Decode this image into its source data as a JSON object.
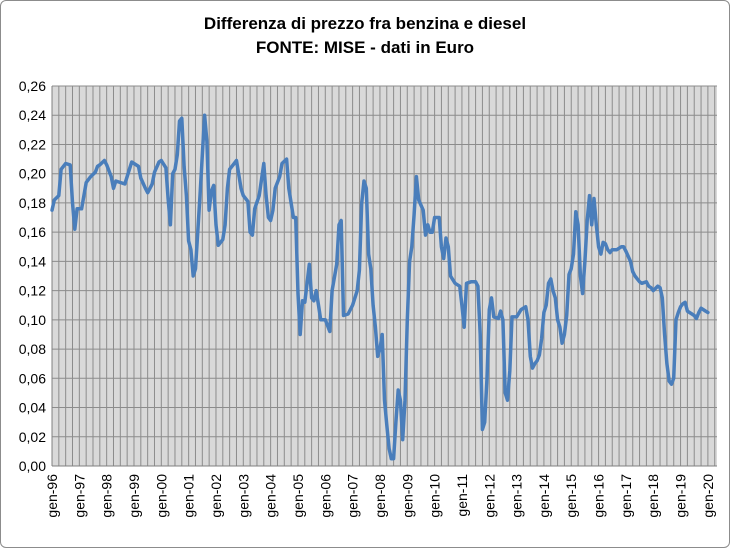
{
  "chart_data": {
    "type": "line",
    "title": "Differenza di prezzo fra benzina e diesel",
    "subtitle": "FONTE: MISE - dati in Euro",
    "ylim": [
      0,
      0.26
    ],
    "y_ticks": [
      "0,00",
      "0,02",
      "0,04",
      "0,06",
      "0,08",
      "0,10",
      "0,12",
      "0,14",
      "0,16",
      "0,18",
      "0,20",
      "0,22",
      "0,24",
      "0,26"
    ],
    "x_ticks": [
      "gen-96",
      "gen-97",
      "gen-98",
      "gen-99",
      "gen-00",
      "gen-01",
      "gen-02",
      "gen-03",
      "gen-04",
      "gen-05",
      "gen-06",
      "gen-07",
      "gen-08",
      "gen-09",
      "gen-10",
      "gen-11",
      "gen-12",
      "gen-13",
      "gen-14",
      "gen-15",
      "gen-16",
      "gen-17",
      "gen-18",
      "gen-19",
      "gen-20"
    ],
    "grid": true,
    "series_color": "#4a7ebb",
    "points": [
      [
        "gen-96",
        0.175
      ],
      [
        "feb-96",
        0.182
      ],
      [
        "apr-96",
        0.185
      ],
      [
        "mag-96",
        0.203
      ],
      [
        "lug-96",
        0.207
      ],
      [
        "set-96",
        0.206
      ],
      [
        "ott-96",
        0.18
      ],
      [
        "nov-96",
        0.162
      ],
      [
        "dic-96",
        0.176
      ],
      [
        "feb-97",
        0.176
      ],
      [
        "apr-97",
        0.194
      ],
      [
        "giu-97",
        0.198
      ],
      [
        "ago-97",
        0.201
      ],
      [
        "set-97",
        0.205
      ],
      [
        "ott-97",
        0.206
      ],
      [
        "dic-97",
        0.209
      ],
      [
        "gen-98",
        0.206
      ],
      [
        "mar-98",
        0.198
      ],
      [
        "apr-98",
        0.19
      ],
      [
        "mag-98",
        0.195
      ],
      [
        "lug-98",
        0.194
      ],
      [
        "set-98",
        0.193
      ],
      [
        "nov-98",
        0.203
      ],
      [
        "dic-98",
        0.208
      ],
      [
        "gen-99",
        0.207
      ],
      [
        "mar-99",
        0.205
      ],
      [
        "apr-99",
        0.197
      ],
      [
        "giu-99",
        0.19
      ],
      [
        "lug-99",
        0.187
      ],
      [
        "set-99",
        0.193
      ],
      [
        "ott-99",
        0.201
      ],
      [
        "dic-99",
        0.208
      ],
      [
        "gen-00",
        0.209
      ],
      [
        "mar-00",
        0.204
      ],
      [
        "apr-00",
        0.183
      ],
      [
        "mag-00",
        0.165
      ],
      [
        "giu-00",
        0.2
      ],
      [
        "lug-00",
        0.203
      ],
      [
        "ago-00",
        0.213
      ],
      [
        "set-00",
        0.236
      ],
      [
        "ott-00",
        0.238
      ],
      [
        "nov-00",
        0.205
      ],
      [
        "dic-00",
        0.185
      ],
      [
        "gen-01",
        0.154
      ],
      [
        "feb-01",
        0.148
      ],
      [
        "mar-01",
        0.13
      ],
      [
        "apr-01",
        0.135
      ],
      [
        "giu-01",
        0.185
      ],
      [
        "ago-01",
        0.24
      ],
      [
        "set-01",
        0.222
      ],
      [
        "ott-01",
        0.175
      ],
      [
        "nov-01",
        0.188
      ],
      [
        "dic-01",
        0.192
      ],
      [
        "gen-02",
        0.165
      ],
      [
        "feb-02",
        0.151
      ],
      [
        "apr-02",
        0.155
      ],
      [
        "mag-02",
        0.165
      ],
      [
        "giu-02",
        0.19
      ],
      [
        "lug-02",
        0.203
      ],
      [
        "set-02",
        0.207
      ],
      [
        "ott-02",
        0.209
      ],
      [
        "dic-02",
        0.19
      ],
      [
        "gen-03",
        0.185
      ],
      [
        "mar-03",
        0.181
      ],
      [
        "apr-03",
        0.16
      ],
      [
        "mag-03",
        0.158
      ],
      [
        "giu-03",
        0.176
      ],
      [
        "ago-03",
        0.185
      ],
      [
        "ott-03",
        0.207
      ],
      [
        "nov-03",
        0.185
      ],
      [
        "dic-03",
        0.17
      ],
      [
        "gen-04",
        0.168
      ],
      [
        "feb-04",
        0.175
      ],
      [
        "mar-04",
        0.19
      ],
      [
        "mag-04",
        0.198
      ],
      [
        "giu-04",
        0.207
      ],
      [
        "ago-04",
        0.21
      ],
      [
        "set-04",
        0.19
      ],
      [
        "ott-04",
        0.18
      ],
      [
        "nov-04",
        0.17
      ],
      [
        "dic-04",
        0.17
      ],
      [
        "gen-05",
        0.118
      ],
      [
        "feb-05",
        0.09
      ],
      [
        "mar-05",
        0.113
      ],
      [
        "apr-05",
        0.112
      ],
      [
        "giu-05",
        0.138
      ],
      [
        "lug-05",
        0.115
      ],
      [
        "ago-05",
        0.113
      ],
      [
        "set-05",
        0.12
      ],
      [
        "ott-05",
        0.11
      ],
      [
        "nov-05",
        0.1
      ],
      [
        "gen-06",
        0.1
      ],
      [
        "mar-06",
        0.092
      ],
      [
        "apr-06",
        0.12
      ],
      [
        "giu-06",
        0.138
      ],
      [
        "lug-06",
        0.165
      ],
      [
        "ago-06",
        0.168
      ],
      [
        "set-06",
        0.103
      ],
      [
        "nov-06",
        0.104
      ],
      [
        "gen-07",
        0.11
      ],
      [
        "mar-07",
        0.12
      ],
      [
        "apr-07",
        0.134
      ],
      [
        "mag-07",
        0.18
      ],
      [
        "giu-07",
        0.195
      ],
      [
        "lug-07",
        0.19
      ],
      [
        "ago-07",
        0.145
      ],
      [
        "set-07",
        0.135
      ],
      [
        "ott-07",
        0.11
      ],
      [
        "nov-07",
        0.095
      ],
      [
        "dic-07",
        0.075
      ],
      [
        "gen-08",
        0.08
      ],
      [
        "feb-08",
        0.09
      ],
      [
        "mar-08",
        0.045
      ],
      [
        "apr-08",
        0.028
      ],
      [
        "mag-08",
        0.012
      ],
      [
        "giu-08",
        0.005
      ],
      [
        "lug-08",
        0.005
      ],
      [
        "ago-08",
        0.03
      ],
      [
        "set-08",
        0.052
      ],
      [
        "ott-08",
        0.045
      ],
      [
        "nov-08",
        0.018
      ],
      [
        "dic-08",
        0.045
      ],
      [
        "gen-09",
        0.1
      ],
      [
        "feb-09",
        0.14
      ],
      [
        "mar-09",
        0.15
      ],
      [
        "apr-09",
        0.172
      ],
      [
        "mag-09",
        0.198
      ],
      [
        "giu-09",
        0.182
      ],
      [
        "ago-09",
        0.175
      ],
      [
        "set-09",
        0.158
      ],
      [
        "ott-09",
        0.165
      ],
      [
        "nov-09",
        0.16
      ],
      [
        "dic-09",
        0.16
      ],
      [
        "gen-10",
        0.17
      ],
      [
        "mar-10",
        0.17
      ],
      [
        "apr-10",
        0.15
      ],
      [
        "mag-10",
        0.142
      ],
      [
        "giu-10",
        0.156
      ],
      [
        "lug-10",
        0.15
      ],
      [
        "ago-10",
        0.13
      ],
      [
        "ott-10",
        0.125
      ],
      [
        "dic-10",
        0.123
      ],
      [
        "gen-11",
        0.11
      ],
      [
        "feb-11",
        0.095
      ],
      [
        "mar-11",
        0.125
      ],
      [
        "mag-11",
        0.126
      ],
      [
        "lug-11",
        0.126
      ],
      [
        "ago-11",
        0.123
      ],
      [
        "set-11",
        0.09
      ],
      [
        "ott-11",
        0.025
      ],
      [
        "nov-11",
        0.03
      ],
      [
        "dic-11",
        0.06
      ],
      [
        "gen-12",
        0.107
      ],
      [
        "feb-12",
        0.115
      ],
      [
        "mar-12",
        0.102
      ],
      [
        "mag-12",
        0.101
      ],
      [
        "giu-12",
        0.106
      ],
      [
        "lug-12",
        0.1
      ],
      [
        "ago-12",
        0.05
      ],
      [
        "set-12",
        0.045
      ],
      [
        "ott-12",
        0.065
      ],
      [
        "nov-12",
        0.102
      ],
      [
        "gen-13",
        0.102
      ],
      [
        "mar-13",
        0.107
      ],
      [
        "mag-13",
        0.109
      ],
      [
        "giu-13",
        0.1
      ],
      [
        "lug-13",
        0.075
      ],
      [
        "ago-13",
        0.067
      ],
      [
        "set-13",
        0.07
      ],
      [
        "ott-13",
        0.072
      ],
      [
        "nov-13",
        0.076
      ],
      [
        "dic-13",
        0.087
      ],
      [
        "gen-14",
        0.105
      ],
      [
        "feb-14",
        0.11
      ],
      [
        "mar-14",
        0.125
      ],
      [
        "apr-14",
        0.128
      ],
      [
        "mag-14",
        0.12
      ],
      [
        "giu-14",
        0.115
      ],
      [
        "lug-14",
        0.1
      ],
      [
        "ago-14",
        0.095
      ],
      [
        "set-14",
        0.084
      ],
      [
        "ott-14",
        0.09
      ],
      [
        "nov-14",
        0.103
      ],
      [
        "dic-14",
        0.131
      ],
      [
        "gen-15",
        0.135
      ],
      [
        "feb-15",
        0.145
      ],
      [
        "mar-15",
        0.174
      ],
      [
        "apr-15",
        0.165
      ],
      [
        "mag-15",
        0.13
      ],
      [
        "giu-15",
        0.118
      ],
      [
        "lug-15",
        0.14
      ],
      [
        "ago-15",
        0.168
      ],
      [
        "set-15",
        0.185
      ],
      [
        "ott-15",
        0.165
      ],
      [
        "nov-15",
        0.183
      ],
      [
        "dic-15",
        0.165
      ],
      [
        "gen-16",
        0.15
      ],
      [
        "feb-16",
        0.145
      ],
      [
        "mar-16",
        0.153
      ],
      [
        "apr-16",
        0.152
      ],
      [
        "mag-16",
        0.148
      ],
      [
        "giu-16",
        0.146
      ],
      [
        "lug-16",
        0.148
      ],
      [
        "set-16",
        0.148
      ],
      [
        "nov-16",
        0.15
      ],
      [
        "dic-16",
        0.15
      ],
      [
        "gen-17",
        0.147
      ],
      [
        "mar-17",
        0.14
      ],
      [
        "apr-17",
        0.133
      ],
      [
        "mag-17",
        0.13
      ],
      [
        "giu-17",
        0.128
      ],
      [
        "lug-17",
        0.126
      ],
      [
        "ago-17",
        0.125
      ],
      [
        "ott-17",
        0.126
      ],
      [
        "nov-17",
        0.123
      ],
      [
        "dic-17",
        0.122
      ],
      [
        "gen-18",
        0.12
      ],
      [
        "mar-18",
        0.123
      ],
      [
        "apr-18",
        0.122
      ],
      [
        "mag-18",
        0.115
      ],
      [
        "giu-18",
        0.09
      ],
      [
        "lug-18",
        0.07
      ],
      [
        "ago-18",
        0.058
      ],
      [
        "set-18",
        0.056
      ],
      [
        "ott-18",
        0.06
      ],
      [
        "nov-18",
        0.1
      ],
      [
        "dic-18",
        0.105
      ],
      [
        "gen-19",
        0.109
      ],
      [
        "feb-19",
        0.111
      ],
      [
        "mar-19",
        0.112
      ],
      [
        "apr-19",
        0.106
      ],
      [
        "giu-19",
        0.104
      ],
      [
        "lug-19",
        0.103
      ],
      [
        "ago-19",
        0.101
      ],
      [
        "set-19",
        0.105
      ],
      [
        "ott-19",
        0.108
      ],
      [
        "nov-19",
        0.107
      ],
      [
        "dic-19",
        0.106
      ],
      [
        "gen-20",
        0.105
      ]
    ]
  }
}
